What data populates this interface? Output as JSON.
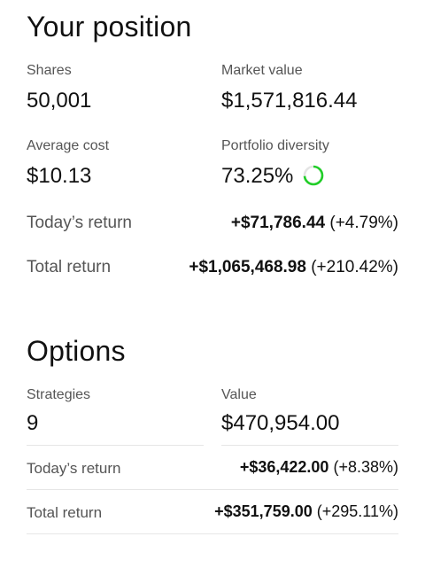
{
  "position": {
    "title": "Your position",
    "shares_label": "Shares",
    "shares_value": "50,001",
    "market_value_label": "Market value",
    "market_value": "$1,571,816.44",
    "avg_cost_label": "Average cost",
    "avg_cost_value": "$10.13",
    "diversity_label": "Portfolio diversity",
    "diversity_value": "73.25%",
    "diversity_fraction": 0.7325,
    "diversity_color": "#21ce28",
    "todays_return_label": "Today’s return",
    "todays_return_amount": "+$71,786.44",
    "todays_return_pct": "(+4.79%)",
    "total_return_label": "Total return",
    "total_return_amount": "+$1,065,468.98",
    "total_return_pct": "(+210.42%)"
  },
  "options": {
    "title": "Options",
    "strategies_label": "Strategies",
    "strategies_value": "9",
    "value_label": "Value",
    "value": "$470,954.00",
    "todays_return_label": "Today’s return",
    "todays_return_amount": "+$36,422.00",
    "todays_return_pct": "(+8.38%)",
    "total_return_label": "Total return",
    "total_return_amount": "+$351,759.00",
    "total_return_pct": "(+295.11%)"
  }
}
